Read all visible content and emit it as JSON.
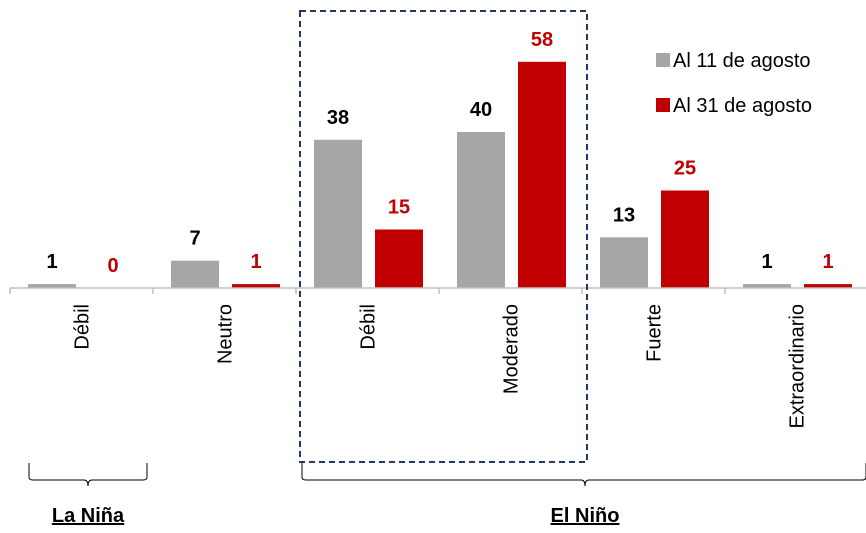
{
  "chart_data": {
    "type": "bar",
    "categories": [
      "Débil",
      "Neutro",
      "Débil",
      "Moderado",
      "Fuerte",
      "Extraordinario"
    ],
    "series": [
      {
        "name": "Al 11 de agosto",
        "values": [
          1,
          7,
          38,
          40,
          13,
          1
        ],
        "color": "#a6a6a6"
      },
      {
        "name": "Al 31 de agosto",
        "values": [
          0,
          1,
          15,
          58,
          25,
          1
        ],
        "color": "#c00000"
      }
    ],
    "groups": [
      {
        "label": "La Niña",
        "categories": [
          "Débil"
        ]
      },
      {
        "label": "El Niño",
        "categories": [
          "Débil",
          "Moderado",
          "Fuerte",
          "Extraordinario"
        ]
      }
    ],
    "highlight_colors": {
      "label_series_1": "#000000",
      "label_series_2": "#c00000",
      "highlight_box": "#1f3864"
    },
    "legend_position": "top-right",
    "grid": false
  }
}
